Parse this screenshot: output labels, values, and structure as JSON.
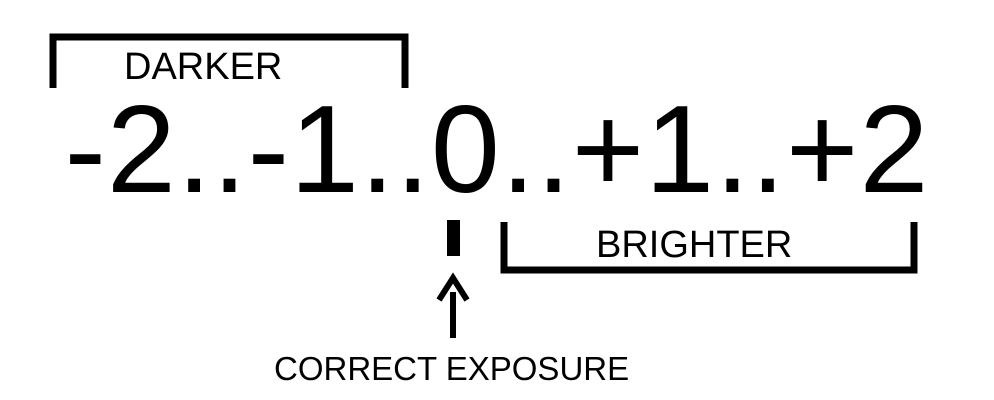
{
  "scale": {
    "text": "-2..-1..0..+1..+2"
  },
  "labels": {
    "darker": "DARKER",
    "brighter": "BRIGHTER",
    "correct_exposure": "CORRECT EXPOSURE"
  },
  "colors": {
    "foreground": "#000000",
    "background": "#ffffff"
  }
}
